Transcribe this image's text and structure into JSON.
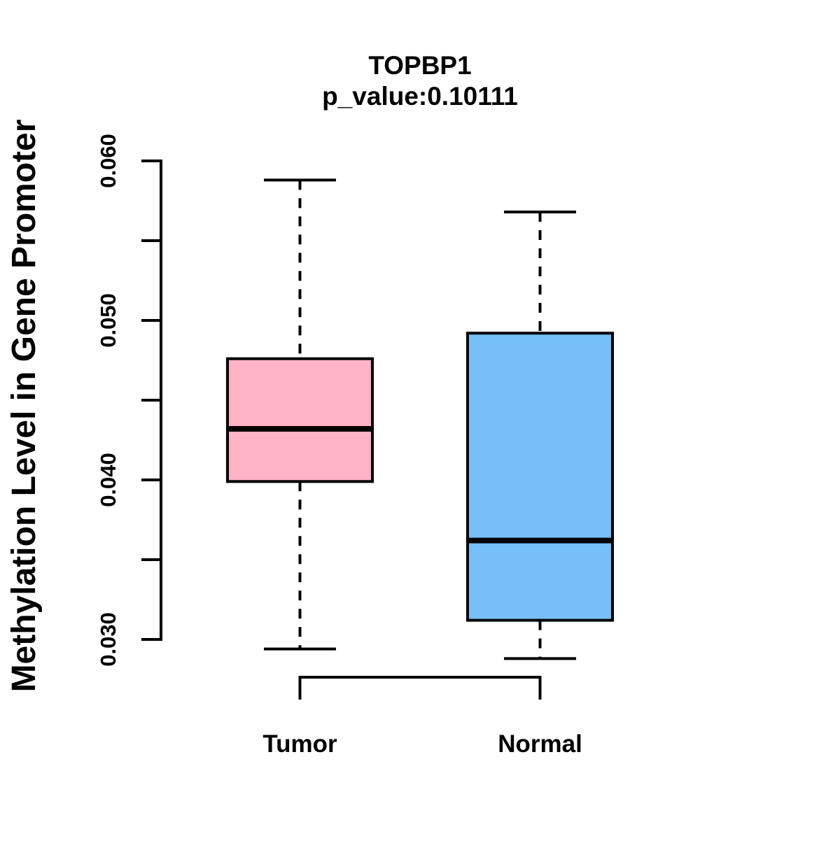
{
  "chart_data": {
    "type": "boxplot",
    "title": "TOPBP1",
    "subtitle": "p_value:0.10111",
    "ylabel": "Methylation Level in Gene Promoter",
    "xlabel": "",
    "categories": [
      "Tumor",
      "Normal"
    ],
    "series": [
      {
        "name": "Tumor",
        "whisker_low": 0.0294,
        "q1": 0.0399,
        "median": 0.0432,
        "q3": 0.0476,
        "whisker_high": 0.0588,
        "fill_color": "#FFB3C5"
      },
      {
        "name": "Normal",
        "whisker_low": 0.0288,
        "q1": 0.0312,
        "median": 0.0362,
        "q3": 0.0492,
        "whisker_high": 0.0568,
        "fill_color": "#76BFF8"
      }
    ],
    "ylim": [
      0.03,
      0.06
    ],
    "yticks": {
      "values": [
        0.03,
        0.035,
        0.04,
        0.045,
        0.05,
        0.055,
        0.06
      ],
      "labels": [
        "0.030",
        "",
        "0.040",
        "",
        "0.050",
        "",
        "0.060"
      ]
    },
    "stroke_color": "#000000",
    "whisker_style": "dashed",
    "grid": false,
    "legend": null
  }
}
